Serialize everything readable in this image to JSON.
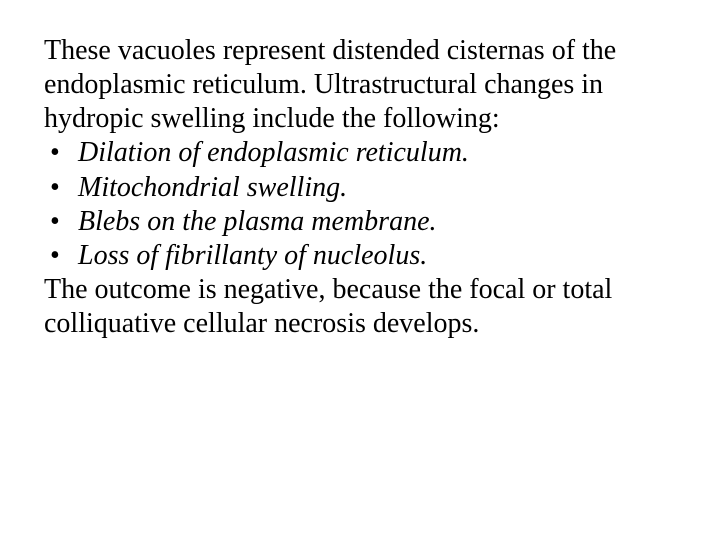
{
  "text_color": "#000000",
  "background_color": "#ffffff",
  "font_family": "Times New Roman",
  "font_size_pt": 28,
  "intro": "These vacuoles represent distended cisternas of the endoplasmic reticulum. Ultrastructural changes in hydropic swelling include the following:",
  "bullets": [
    "Dilation of endoplasmic reticulum.",
    "Mitochondrial swelling.",
    "Blebs on the plasma membrane.",
    "Loss of fibrillanty of nucleolus."
  ],
  "outro": "The outcome is negative, because the focal or total colliquative cellular necrosis develops."
}
